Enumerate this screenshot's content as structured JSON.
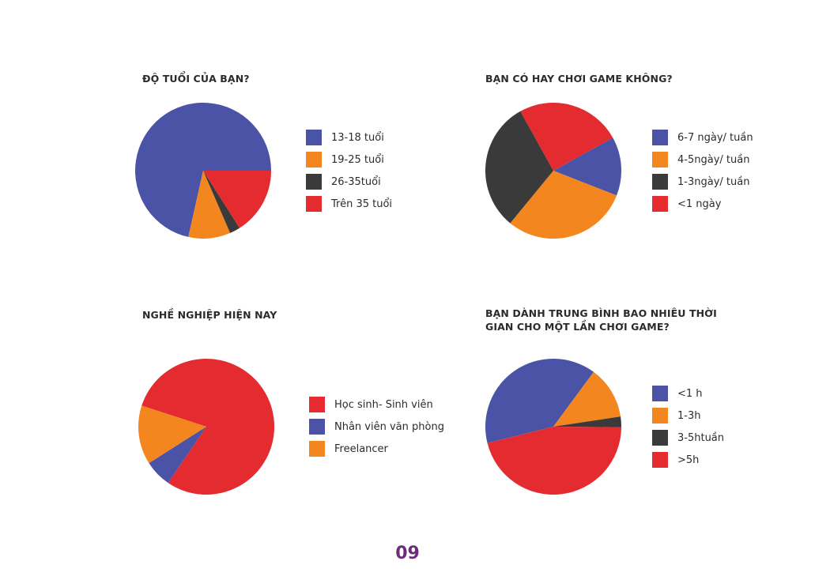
{
  "colors": {
    "blue": "#4a53a5",
    "orange": "#f4861f",
    "dark": "#3a3a3a",
    "red": "#e42b2f",
    "page_number": "#6b2d7b"
  },
  "page_number": "09",
  "chart_data": [
    {
      "type": "pie",
      "title": "ĐỘ TUỔI CỦA BẠN?",
      "labels": [
        "13-18 tuổi",
        "19-25 tuổi",
        "26-35tuổi",
        "Trên 35 tuổi"
      ],
      "values": [
        71.5,
        10,
        2.5,
        16
      ],
      "colors": [
        "#4a53a5",
        "#f4861f",
        "#3a3a3a",
        "#e42b2f"
      ],
      "legend_position": "right"
    },
    {
      "type": "pie",
      "title": "BẠN CÓ HAY CHƠI GAME KHÔNG?",
      "labels": [
        "6-7 ngày/ tuần",
        "4-5ngày/ tuần",
        "1-3ngày/ tuần",
        "<1 ngày"
      ],
      "values": [
        14,
        30,
        31,
        25
      ],
      "colors": [
        "#4a53a5",
        "#f4861f",
        "#3a3a3a",
        "#e42b2f"
      ],
      "legend_position": "right"
    },
    {
      "type": "pie",
      "title": "NGHỀ NGHIỆP HIỆN NAY",
      "labels": [
        "Học sinh- Sinh viên",
        "Nhân viên văn phòng",
        "Freelancer"
      ],
      "values": [
        79.5,
        6.5,
        14
      ],
      "colors": [
        "#e42b2f",
        "#4a53a5",
        "#f4861f"
      ],
      "legend_position": "right"
    },
    {
      "type": "pie",
      "title": "BẠN DÀNH TRUNG BÌNH BAO NHIÊU THỜI\nGIAN CHO MỘT LẦN CHƠI GAME?",
      "labels": [
        "<1 h",
        "1-3h",
        "3-5htuần",
        ">5h"
      ],
      "values": [
        39,
        12.5,
        2.5,
        46
      ],
      "colors": [
        "#4a53a5",
        "#f4861f",
        "#3a3a3a",
        "#e42b2f"
      ],
      "legend_position": "right"
    }
  ]
}
